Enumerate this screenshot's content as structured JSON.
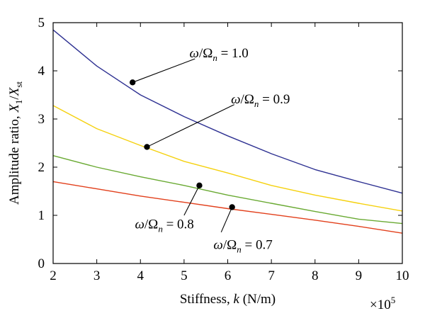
{
  "chart_data": {
    "type": "line",
    "xlabel": "Stiffness, k (N/m)",
    "xlabel_parts": [
      "Stiffness, ",
      "k",
      " (N/m)"
    ],
    "ylabel_parts": [
      "Amplitude ratio, ",
      "X",
      "1",
      "/",
      "X",
      "st"
    ],
    "x_multiplier": "×10",
    "x_multiplier_exp": "5",
    "xlim": [
      2,
      10
    ],
    "ylim": [
      0,
      5
    ],
    "xticks": [
      "2",
      "3",
      "4",
      "5",
      "6",
      "7",
      "8",
      "9",
      "10"
    ],
    "yticks": [
      "0",
      "1",
      "2",
      "3",
      "4",
      "5"
    ],
    "grid": false,
    "series": [
      {
        "ratio": "1.0",
        "color": "#2e3192",
        "x": [
          2,
          3,
          4,
          5,
          6,
          7,
          8,
          9,
          10
        ],
        "y": [
          4.85,
          4.1,
          3.5,
          3.05,
          2.65,
          2.28,
          1.95,
          1.7,
          1.46
        ],
        "marker": [
          3.82,
          3.76
        ],
        "label_anchor": [
          5.25,
          4.25
        ]
      },
      {
        "ratio": "0.9",
        "color": "#f5d10e",
        "x": [
          2,
          3,
          4,
          5,
          6,
          7,
          8,
          9,
          10
        ],
        "y": [
          3.28,
          2.8,
          2.45,
          2.12,
          1.88,
          1.62,
          1.42,
          1.25,
          1.09
        ],
        "marker": [
          4.15,
          2.42
        ],
        "label_anchor": [
          6.15,
          3.3
        ]
      },
      {
        "ratio": "0.8",
        "color": "#6aaa33",
        "x": [
          2,
          3,
          4,
          5,
          6,
          7,
          8,
          9,
          10
        ],
        "y": [
          2.24,
          2.0,
          1.8,
          1.62,
          1.42,
          1.25,
          1.08,
          0.92,
          0.83
        ],
        "marker": [
          5.35,
          1.62
        ],
        "label_anchor": [
          5.0,
          1.0
        ]
      },
      {
        "ratio": "0.7",
        "color": "#e2401c",
        "x": [
          2,
          3,
          4,
          5,
          6,
          7,
          8,
          9,
          10
        ],
        "y": [
          1.7,
          1.55,
          1.4,
          1.27,
          1.14,
          1.02,
          0.9,
          0.77,
          0.63
        ],
        "marker": [
          6.1,
          1.17
        ],
        "label_anchor": [
          5.85,
          0.65
        ]
      }
    ],
    "annotations": [
      {
        "series": 0,
        "text_x": 5.8,
        "text_y": 4.28
      },
      {
        "series": 1,
        "text_x": 6.75,
        "text_y": 3.32
      },
      {
        "series": 2,
        "text_x": 4.55,
        "text_y": 0.73
      },
      {
        "series": 3,
        "text_x": 6.35,
        "text_y": 0.3
      }
    ]
  }
}
